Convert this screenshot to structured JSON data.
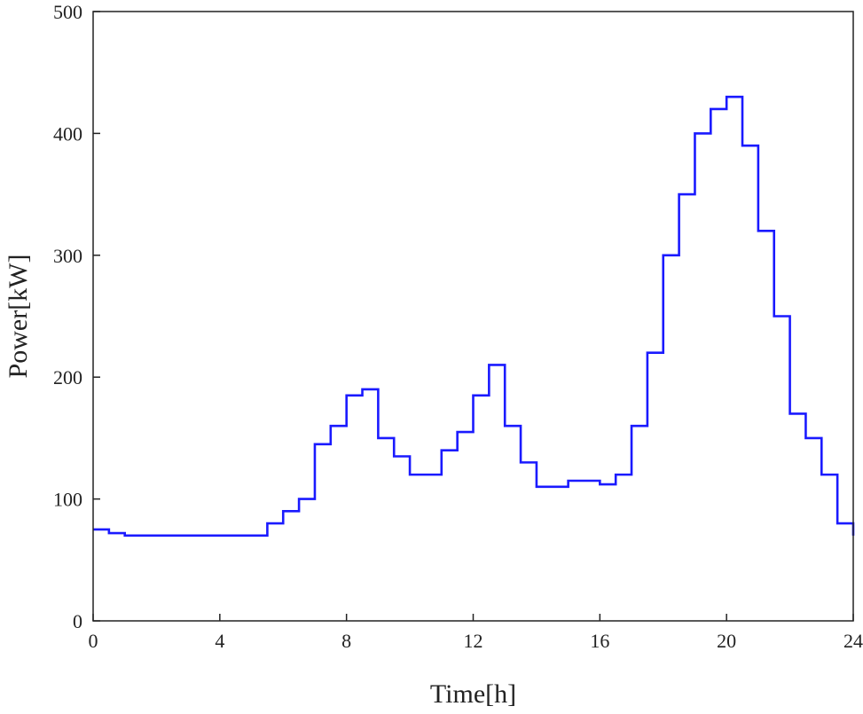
{
  "chart_data": {
    "type": "line",
    "step": true,
    "title": "",
    "xlabel": "Time[h]",
    "ylabel": "Power[kW]",
    "xlim": [
      0,
      24
    ],
    "ylim": [
      0,
      500
    ],
    "xticks": [
      0,
      4,
      8,
      12,
      16,
      20,
      24
    ],
    "yticks": [
      0,
      100,
      200,
      300,
      400,
      500
    ],
    "grid": false,
    "legend": "none",
    "series": [
      {
        "color": "#1a1aff",
        "x": [
          0,
          0.5,
          1,
          1.5,
          2,
          2.5,
          3,
          3.5,
          4,
          4.5,
          5,
          5.5,
          6,
          6.5,
          7,
          7.5,
          8,
          8.5,
          9,
          9.5,
          10,
          10.5,
          11,
          11.5,
          12,
          12.5,
          13,
          13.5,
          14,
          14.5,
          15,
          15.5,
          16,
          16.5,
          17,
          17.5,
          18,
          18.5,
          19,
          19.5,
          20,
          20.5,
          21,
          21.5,
          22,
          22.5,
          23,
          23.5,
          24
        ],
        "values": [
          75,
          72,
          70,
          70,
          70,
          70,
          70,
          70,
          70,
          70,
          70,
          80,
          90,
          100,
          145,
          160,
          185,
          190,
          150,
          135,
          120,
          120,
          140,
          155,
          185,
          210,
          160,
          130,
          110,
          110,
          115,
          115,
          112,
          120,
          160,
          220,
          300,
          350,
          400,
          420,
          430,
          390,
          320,
          250,
          170,
          150,
          120,
          80,
          70
        ]
      }
    ]
  }
}
